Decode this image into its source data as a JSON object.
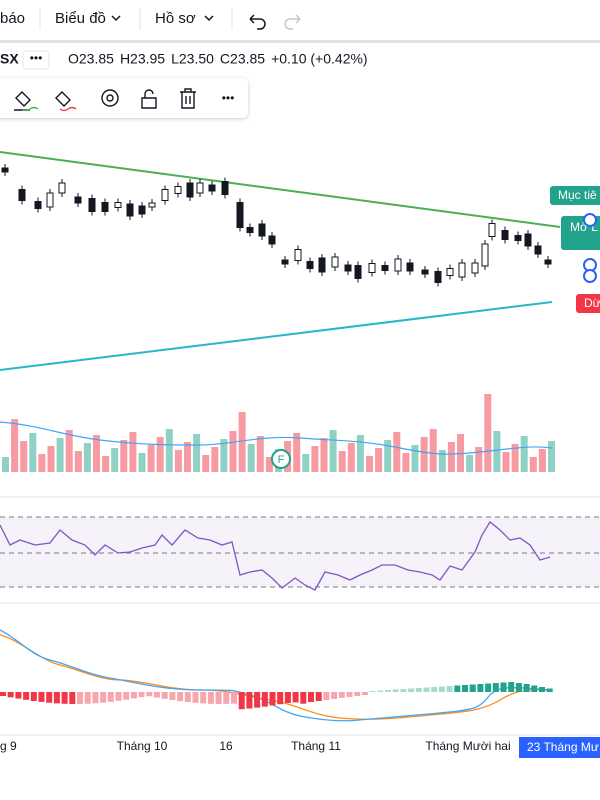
{
  "toolbar": {
    "items": [
      "báo",
      "Biểu đồ",
      "Hồ sơ"
    ]
  },
  "legend": {
    "symbol": "SX",
    "ohlc": [
      "O23.85",
      "H23.95",
      "L23.50",
      "C23.85",
      "+0.10 (+0.42%)"
    ]
  },
  "chart": {
    "badges": [
      "Mục tiê",
      "Mở L",
      "Dừ"
    ],
    "event_marker": "F"
  },
  "x_axis": {
    "labels": [
      "g 9",
      "Tháng 10",
      "16",
      "Tháng 11",
      "Tháng Mười hai"
    ],
    "current": "23 Tháng Mư"
  }
}
